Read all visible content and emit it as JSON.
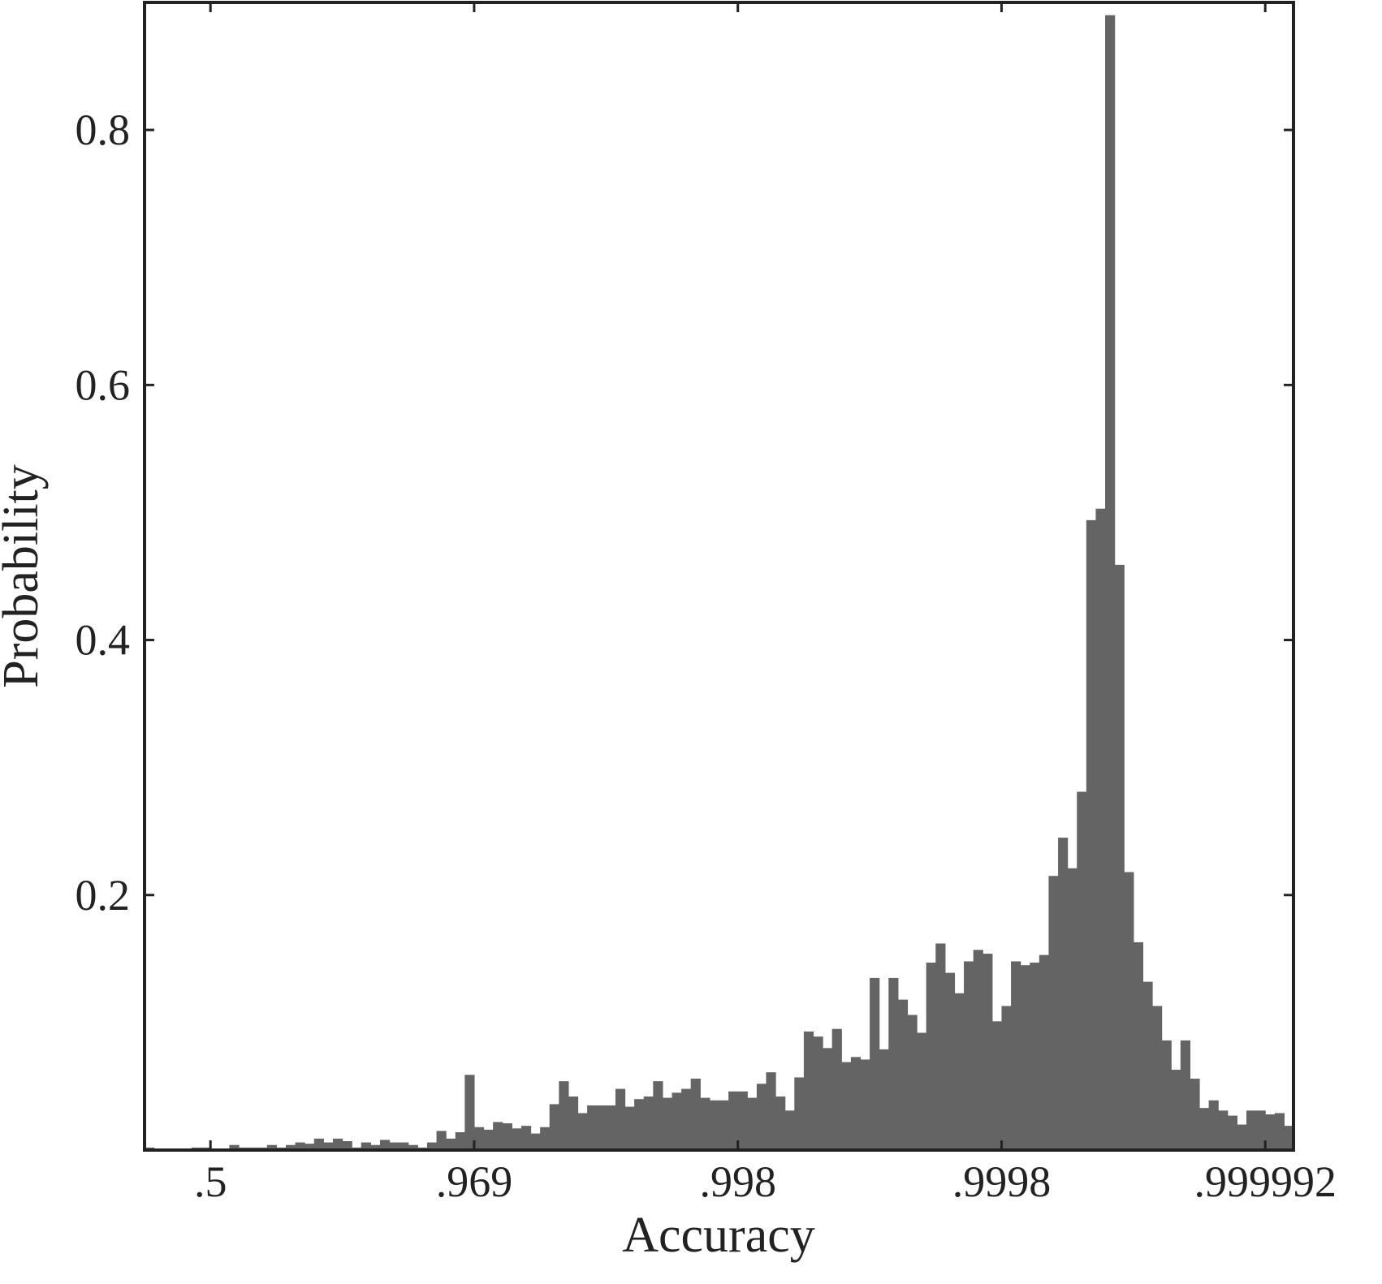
{
  "chart_data": {
    "type": "bar",
    "title": "",
    "xlabel": "Accuracy",
    "ylabel": "Probability",
    "ylim": [
      0,
      0.9
    ],
    "yticks": [
      {
        "value": 0.2,
        "label": "0.2"
      },
      {
        "value": 0.4,
        "label": "0.4"
      },
      {
        "value": 0.6,
        "label": "0.6"
      },
      {
        "value": 0.8,
        "label": "0.8"
      }
    ],
    "xticks": [
      {
        "bin_position": 7,
        "label": ".5"
      },
      {
        "bin_position": 35,
        "label": ".969"
      },
      {
        "bin_position": 63,
        "label": ".998"
      },
      {
        "bin_position": 91,
        "label": ".9998"
      },
      {
        "bin_position": 119,
        "label": ".999992"
      }
    ],
    "x_scale": "logit (accuracy)",
    "grid": false,
    "box": true,
    "bar_color": "#646464",
    "values": [
      0.002,
      0.001,
      0.001,
      0.001,
      0.001,
      0.002,
      0.002,
      0.001,
      0.001,
      0.004,
      0.002,
      0.002,
      0.002,
      0.004,
      0.002,
      0.004,
      0.006,
      0.005,
      0.009,
      0.006,
      0.009,
      0.007,
      0.002,
      0.006,
      0.004,
      0.008,
      0.006,
      0.006,
      0.004,
      0.002,
      0.006,
      0.015,
      0.009,
      0.014,
      0.059,
      0.018,
      0.016,
      0.022,
      0.021,
      0.017,
      0.019,
      0.013,
      0.018,
      0.036,
      0.054,
      0.042,
      0.029,
      0.035,
      0.035,
      0.035,
      0.048,
      0.034,
      0.04,
      0.042,
      0.054,
      0.041,
      0.045,
      0.048,
      0.056,
      0.041,
      0.039,
      0.039,
      0.046,
      0.046,
      0.041,
      0.052,
      0.061,
      0.042,
      0.031,
      0.057,
      0.093,
      0.089,
      0.08,
      0.095,
      0.069,
      0.073,
      0.071,
      0.135,
      0.079,
      0.135,
      0.118,
      0.106,
      0.092,
      0.147,
      0.162,
      0.139,
      0.123,
      0.148,
      0.157,
      0.154,
      0.101,
      0.113,
      0.148,
      0.145,
      0.147,
      0.153,
      0.215,
      0.245,
      0.221,
      0.281,
      0.494,
      0.503,
      0.89,
      0.459,
      0.218,
      0.163,
      0.132,
      0.113,
      0.086,
      0.063,
      0.086,
      0.056,
      0.033,
      0.039,
      0.031,
      0.027,
      0.02,
      0.031,
      0.031,
      0.028,
      0.029,
      0.019
    ]
  }
}
